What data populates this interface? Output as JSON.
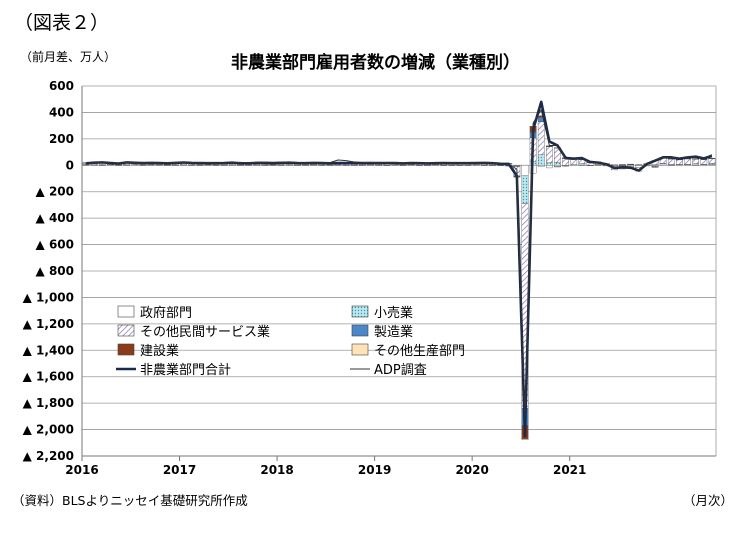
{
  "figure_label": "（図表２）",
  "unit_label": "（前月差、万人）",
  "source_note": "（資料）BLSよりニッセイ基礎研究所作成",
  "x_unit_label": "（月次）",
  "chart_data": {
    "type": "bar",
    "title": "非農業部門雇用者数の増減（業種別）",
    "stacked": true,
    "xlabel": "",
    "ylabel": "",
    "ylim": [
      -2200,
      600
    ],
    "yticks": [
      600,
      400,
      200,
      0,
      -200,
      -400,
      -600,
      -800,
      -1000,
      -1200,
      -1400,
      -1600,
      -1800,
      -2000,
      -2200
    ],
    "ytick_labels": [
      "600",
      "400",
      "200",
      "0",
      "▲ 200",
      "▲ 400",
      "▲ 600",
      "▲ 800",
      "▲ 1,000",
      "▲ 1,200",
      "▲ 1,400",
      "▲ 1,600",
      "▲ 1,800",
      "▲ 2,000",
      "▲ 2,200"
    ],
    "xticks": [
      "2016",
      "2017",
      "2018",
      "2019",
      "2020",
      "2021"
    ],
    "grid": true,
    "legend_position": "lower-left",
    "start_month": "2016-01",
    "series": [
      {
        "name": "政府部門",
        "kind": "bar",
        "color": "#ffffff",
        "pattern": "plain",
        "values": [
          2,
          2,
          1,
          3,
          1,
          2,
          3,
          1,
          2,
          2,
          1,
          1,
          2,
          1,
          1,
          2,
          1,
          1,
          2,
          1,
          1,
          2,
          1,
          1,
          1,
          2,
          1,
          1,
          2,
          1,
          1,
          2,
          1,
          1,
          1,
          2,
          1,
          1,
          2,
          1,
          2,
          1,
          1,
          2,
          1,
          1,
          1,
          1,
          2,
          1,
          1,
          2,
          1,
          -5,
          -80,
          -60,
          -10,
          -20,
          -10,
          -2,
          0,
          2,
          1,
          2,
          0,
          -10,
          -5,
          -10,
          -15,
          -5,
          5,
          10,
          2,
          3,
          3,
          2,
          3,
          5
        ]
      },
      {
        "name": "小売業",
        "kind": "bar",
        "color": "#9fd9e6",
        "pattern": "dots",
        "values": [
          3,
          2,
          3,
          2,
          2,
          3,
          2,
          3,
          2,
          2,
          3,
          2,
          2,
          2,
          3,
          2,
          2,
          2,
          2,
          2,
          2,
          2,
          3,
          2,
          2,
          2,
          2,
          2,
          2,
          2,
          2,
          2,
          2,
          2,
          2,
          2,
          2,
          1,
          1,
          1,
          1,
          1,
          1,
          1,
          1,
          1,
          1,
          1,
          1,
          1,
          1,
          -2,
          -3,
          -5,
          -210,
          30,
          80,
          20,
          20,
          -5,
          5,
          10,
          -2,
          5,
          10,
          0,
          -8,
          5,
          2,
          0,
          -10,
          5,
          5,
          3,
          5,
          10,
          5,
          10
        ]
      },
      {
        "name": "その他民間サービス業",
        "kind": "bar",
        "color": "#c9b8e0",
        "pattern": "hatch",
        "values": [
          12,
          14,
          16,
          10,
          8,
          15,
          12,
          12,
          10,
          12,
          10,
          12,
          14,
          12,
          10,
          10,
          12,
          12,
          14,
          10,
          10,
          12,
          12,
          10,
          12,
          14,
          12,
          10,
          12,
          12,
          10,
          12,
          12,
          12,
          12,
          12,
          12,
          14,
          12,
          10,
          12,
          12,
          10,
          12,
          12,
          12,
          12,
          12,
          12,
          14,
          12,
          10,
          12,
          -70,
          -1550,
          180,
          250,
          120,
          110,
          50,
          40,
          30,
          20,
          15,
          -5,
          -25,
          -15,
          -15,
          -30,
          10,
          30,
          40,
          40,
          35,
          40,
          35,
          35,
          35
        ]
      },
      {
        "name": "製造業",
        "kind": "bar",
        "color": "#4a86c8",
        "pattern": "plain",
        "values": [
          1,
          1,
          0,
          0,
          0,
          1,
          1,
          0,
          1,
          0,
          0,
          1,
          1,
          1,
          1,
          0,
          0,
          1,
          1,
          1,
          1,
          1,
          1,
          1,
          1,
          1,
          1,
          2,
          1,
          1,
          1,
          1,
          1,
          2,
          1,
          1,
          1,
          1,
          1,
          1,
          1,
          1,
          1,
          1,
          1,
          1,
          1,
          1,
          1,
          1,
          1,
          0,
          -1,
          -3,
          -130,
          40,
          35,
          3,
          3,
          6,
          3,
          4,
          2,
          2,
          1,
          2,
          4,
          2,
          1,
          2,
          1,
          4,
          4,
          3,
          4,
          2,
          3,
          2
        ]
      },
      {
        "name": "建設業",
        "kind": "bar",
        "color": "#8b3a1a",
        "pattern": "plain",
        "values": [
          2,
          2,
          1,
          2,
          2,
          1,
          1,
          1,
          2,
          1,
          1,
          2,
          2,
          2,
          1,
          2,
          1,
          1,
          1,
          1,
          1,
          1,
          1,
          1,
          2,
          1,
          1,
          1,
          1,
          1,
          1,
          1,
          1,
          1,
          1,
          1,
          1,
          1,
          1,
          1,
          1,
          1,
          1,
          1,
          1,
          1,
          1,
          1,
          1,
          1,
          1,
          1,
          1,
          -5,
          -100,
          46,
          10,
          4,
          -2,
          2,
          2,
          2,
          2,
          2,
          2,
          2,
          2,
          2,
          2,
          1,
          -6,
          1,
          1,
          1,
          1,
          1,
          1,
          1
        ]
      },
      {
        "name": "その他生産部門",
        "kind": "bar",
        "color": "#ffe2b8",
        "pattern": "plain",
        "values": [
          0,
          1,
          0,
          0,
          0,
          0,
          0,
          0,
          1,
          0,
          0,
          0,
          0,
          0,
          0,
          0,
          0,
          0,
          0,
          0,
          0,
          0,
          0,
          0,
          0,
          0,
          0,
          0,
          0,
          0,
          0,
          0,
          0,
          0,
          0,
          0,
          0,
          0,
          0,
          0,
          0,
          0,
          0,
          0,
          0,
          0,
          0,
          0,
          0,
          0,
          0,
          0,
          0,
          -1,
          -6,
          0,
          0,
          0,
          0,
          0,
          0,
          0,
          0,
          0,
          0,
          0,
          0,
          0,
          0,
          0,
          0,
          0,
          0,
          0,
          0,
          0,
          0,
          0
        ]
      },
      {
        "name": "非農業部門合計",
        "kind": "line",
        "color": "#1a2a4a",
        "width": 2.6,
        "values": [
          15,
          20,
          22,
          17,
          13,
          22,
          19,
          17,
          18,
          17,
          15,
          18,
          21,
          18,
          17,
          16,
          16,
          17,
          20,
          15,
          15,
          18,
          18,
          15,
          18,
          20,
          17,
          16,
          18,
          17,
          15,
          17,
          17,
          18,
          17,
          17,
          17,
          17,
          17,
          14,
          17,
          16,
          14,
          16,
          17,
          16,
          16,
          16,
          17,
          18,
          16,
          11,
          10,
          -81,
          -2050,
          270,
          480,
          180,
          150,
          56,
          50,
          55,
          25,
          20,
          8,
          -20,
          -15,
          -18,
          -40,
          10,
          35,
          60,
          60,
          50,
          60,
          65,
          52,
          70
        ]
      },
      {
        "name": "ADP調査",
        "kind": "line",
        "color": "#333333",
        "width": 1,
        "values": [
          19,
          20,
          21,
          17,
          17,
          22,
          18,
          19,
          17,
          16,
          20,
          19,
          22,
          21,
          20,
          18,
          17,
          16,
          20,
          22,
          19,
          23,
          24,
          23,
          24,
          23,
          20,
          17,
          16,
          18,
          20,
          40,
          35,
          25,
          20,
          22,
          20,
          19,
          20,
          18,
          18,
          17,
          16,
          17,
          18,
          16,
          18,
          17,
          18,
          18,
          17,
          10,
          9,
          -30,
          -1900,
          320,
          420,
          150,
          150,
          48,
          45,
          60,
          20,
          18,
          7,
          -18,
          -10,
          -12,
          -35,
          15,
          40,
          60,
          60,
          55,
          60,
          70,
          55,
          80
        ]
      }
    ]
  }
}
